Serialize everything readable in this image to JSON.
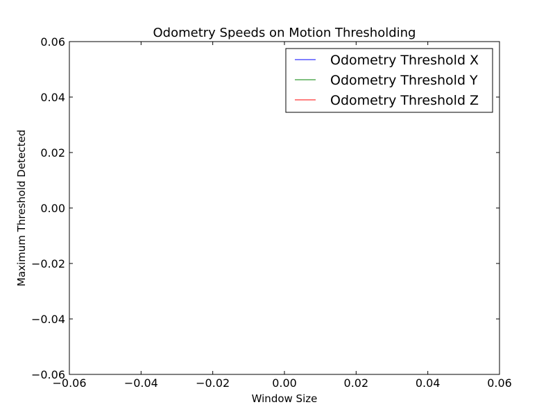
{
  "chart_data": {
    "type": "line",
    "title": "Odometry Speeds on Motion Thresholding",
    "xlabel": "Window Size",
    "ylabel": "Maximum Threshold Detected",
    "xlim": [
      -0.06,
      0.06
    ],
    "ylim": [
      -0.06,
      0.06
    ],
    "xticks": [
      -0.06,
      -0.04,
      -0.02,
      0.0,
      0.02,
      0.04,
      0.06
    ],
    "yticks": [
      -0.06,
      -0.04,
      -0.02,
      0.0,
      0.02,
      0.04,
      0.06
    ],
    "xtick_labels": [
      "−0.06",
      "−0.04",
      "−0.02",
      "0.00",
      "0.02",
      "0.04",
      "0.06"
    ],
    "ytick_labels": [
      "−0.06",
      "−0.04",
      "−0.02",
      "0.00",
      "0.02",
      "0.04",
      "0.06"
    ],
    "grid": false,
    "legend_position": "top-right",
    "series": [
      {
        "name": "Odometry Threshold X",
        "color": "#0000ff",
        "x": [],
        "y": []
      },
      {
        "name": "Odometry Threshold Y",
        "color": "#008000",
        "x": [],
        "y": []
      },
      {
        "name": "Odometry Threshold Z",
        "color": "#ff0000",
        "x": [],
        "y": []
      }
    ]
  }
}
